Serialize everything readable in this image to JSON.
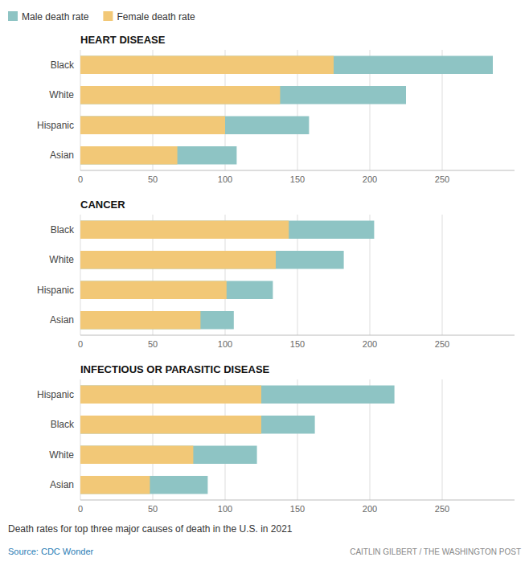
{
  "chart_data": [
    {
      "type": "bar",
      "orientation": "horizontal",
      "stacked": false,
      "title": "HEART DISEASE",
      "categories": [
        "Black",
        "White",
        "Hispanic",
        "Asian"
      ],
      "series": [
        {
          "name": "Male death rate",
          "color": "#8ec4c4",
          "values": [
            285,
            225,
            158,
            108
          ]
        },
        {
          "name": "Female death rate",
          "color": "#f2c877",
          "values": [
            175,
            138,
            100,
            67
          ]
        }
      ],
      "xlim": [
        0,
        300
      ],
      "xticks": [
        0,
        50,
        100,
        150,
        200,
        250
      ],
      "grid": true,
      "legend": "upper left"
    },
    {
      "type": "bar",
      "orientation": "horizontal",
      "stacked": false,
      "title": "CANCER",
      "categories": [
        "Black",
        "White",
        "Hispanic",
        "Asian"
      ],
      "series": [
        {
          "name": "Male death rate",
          "color": "#8ec4c4",
          "values": [
            203,
            182,
            133,
            106
          ]
        },
        {
          "name": "Female death rate",
          "color": "#f2c877",
          "values": [
            144,
            135,
            101,
            83
          ]
        }
      ],
      "xlim": [
        0,
        300
      ],
      "xticks": [
        0,
        50,
        100,
        150,
        200,
        250
      ],
      "grid": true
    },
    {
      "type": "bar",
      "orientation": "horizontal",
      "stacked": false,
      "title": "INFECTIOUS OR PARASITIC DISEASE",
      "categories": [
        "Hispanic",
        "Black",
        "White",
        "Asian"
      ],
      "series": [
        {
          "name": "Male death rate",
          "color": "#8ec4c4",
          "values": [
            217,
            162,
            122,
            88
          ]
        },
        {
          "name": "Female death rate",
          "color": "#f2c877",
          "values": [
            125,
            125,
            78,
            48
          ]
        }
      ],
      "xlim": [
        0,
        300
      ],
      "xticks": [
        0,
        50,
        100,
        150,
        200,
        250
      ],
      "grid": true,
      "annotations": [
        "Death rates for top three major causes of death in the U.S. in 2021",
        "Source: CDC Wonder",
        "CAITLIN GILBERT / THE WASHINGTON POST"
      ]
    }
  ]
}
